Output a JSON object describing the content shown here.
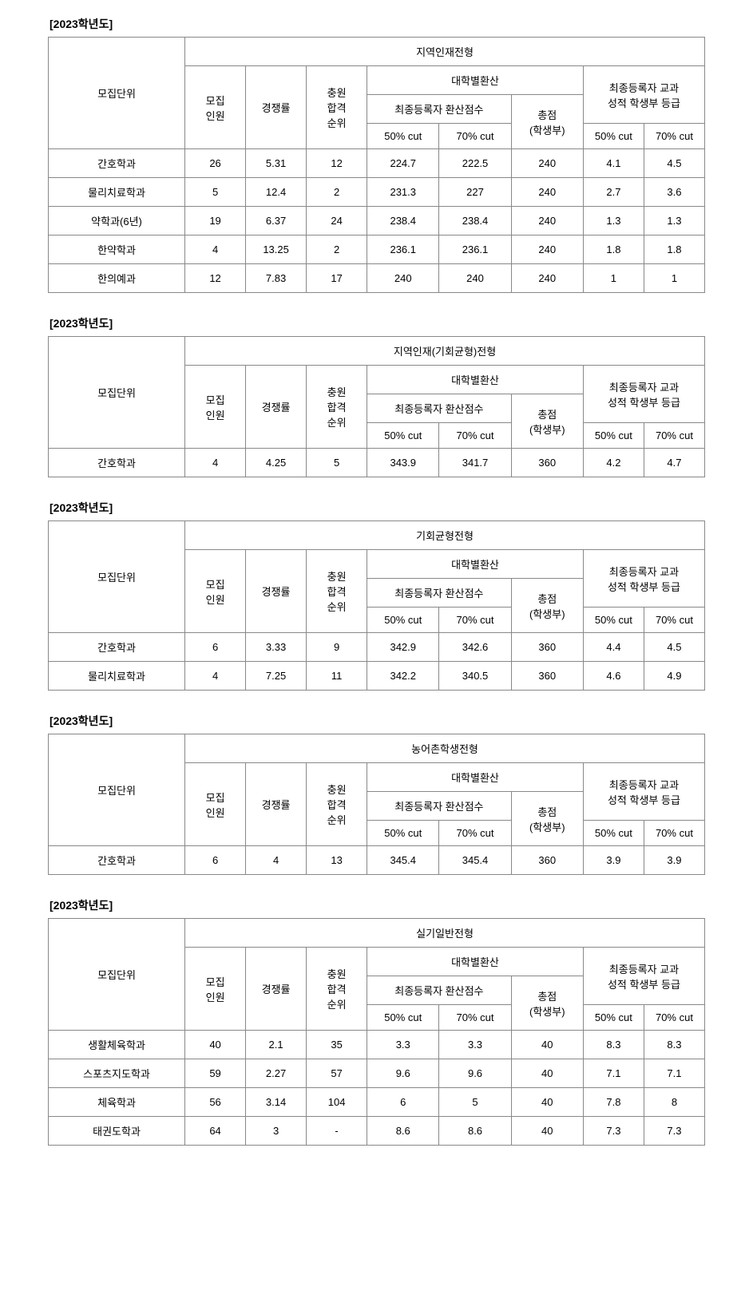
{
  "common": {
    "year_label": "[2023학년도]",
    "header": {
      "unit": "모집단위",
      "recruit_count": "모집\n인원",
      "competition": "경쟁률",
      "rank": "충원\n합격\n순위",
      "conv_group": "대학별환산",
      "final_score": "최종등록자 환산점수",
      "total": "총점\n(학생부)",
      "grade_group": "최종등록자 교과\n성적 학생부 등급",
      "cut50": "50% cut",
      "cut70": "70% cut",
      "cut50b": "50% cut",
      "cut70b": "70% cut"
    }
  },
  "tables": [
    {
      "title": "지역인재전형",
      "rows": [
        {
          "unit": "간호학과",
          "n": "26",
          "comp": "5.31",
          "rank": "12",
          "c50": "224.7",
          "c70": "222.5",
          "tot": "240",
          "g50": "4.1",
          "g70": "4.5"
        },
        {
          "unit": "물리치료학과",
          "n": "5",
          "comp": "12.4",
          "rank": "2",
          "c50": "231.3",
          "c70": "227",
          "tot": "240",
          "g50": "2.7",
          "g70": "3.6"
        },
        {
          "unit": "약학과(6년)",
          "n": "19",
          "comp": "6.37",
          "rank": "24",
          "c50": "238.4",
          "c70": "238.4",
          "tot": "240",
          "g50": "1.3",
          "g70": "1.3"
        },
        {
          "unit": "한약학과",
          "n": "4",
          "comp": "13.25",
          "rank": "2",
          "c50": "236.1",
          "c70": "236.1",
          "tot": "240",
          "g50": "1.8",
          "g70": "1.8"
        },
        {
          "unit": "한의예과",
          "n": "12",
          "comp": "7.83",
          "rank": "17",
          "c50": "240",
          "c70": "240",
          "tot": "240",
          "g50": "1",
          "g70": "1"
        }
      ]
    },
    {
      "title": "지역인재(기회균형)전형",
      "rows": [
        {
          "unit": "간호학과",
          "n": "4",
          "comp": "4.25",
          "rank": "5",
          "c50": "343.9",
          "c70": "341.7",
          "tot": "360",
          "g50": "4.2",
          "g70": "4.7"
        }
      ]
    },
    {
      "title": "기회균형전형",
      "rows": [
        {
          "unit": "간호학과",
          "n": "6",
          "comp": "3.33",
          "rank": "9",
          "c50": "342.9",
          "c70": "342.6",
          "tot": "360",
          "g50": "4.4",
          "g70": "4.5"
        },
        {
          "unit": "물리치료학과",
          "n": "4",
          "comp": "7.25",
          "rank": "11",
          "c50": "342.2",
          "c70": "340.5",
          "tot": "360",
          "g50": "4.6",
          "g70": "4.9"
        }
      ]
    },
    {
      "title": "농어촌학생전형",
      "rows": [
        {
          "unit": "간호학과",
          "n": "6",
          "comp": "4",
          "rank": "13",
          "c50": "345.4",
          "c70": "345.4",
          "tot": "360",
          "g50": "3.9",
          "g70": "3.9"
        }
      ]
    },
    {
      "title": "실기일반전형",
      "rows": [
        {
          "unit": "생활체육학과",
          "n": "40",
          "comp": "2.1",
          "rank": "35",
          "c50": "3.3",
          "c70": "3.3",
          "tot": "40",
          "g50": "8.3",
          "g70": "8.3"
        },
        {
          "unit": "스포츠지도학과",
          "n": "59",
          "comp": "2.27",
          "rank": "57",
          "c50": "9.6",
          "c70": "9.6",
          "tot": "40",
          "g50": "7.1",
          "g70": "7.1"
        },
        {
          "unit": "체육학과",
          "n": "56",
          "comp": "3.14",
          "rank": "104",
          "c50": "6",
          "c70": "5",
          "tot": "40",
          "g50": "7.8",
          "g70": "8"
        },
        {
          "unit": "태권도학과",
          "n": "64",
          "comp": "3",
          "rank": "-",
          "c50": "8.6",
          "c70": "8.6",
          "tot": "40",
          "g50": "7.3",
          "g70": "7.3"
        }
      ]
    }
  ]
}
